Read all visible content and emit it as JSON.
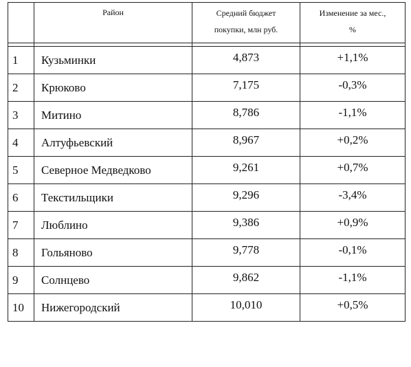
{
  "table": {
    "headers": {
      "number": "",
      "district": "Район",
      "budget_line1": "Средний бюджет",
      "budget_line2": "покупки, млн руб.",
      "change_line1": "Изменение за мес.,",
      "change_line2": "%"
    },
    "rows": [
      {
        "num": "1",
        "district": "Кузьминки",
        "budget": "4,873",
        "change": "+1,1%"
      },
      {
        "num": "2",
        "district": "Крюково",
        "budget": "7,175",
        "change": "-0,3%"
      },
      {
        "num": "3",
        "district": "Митино",
        "budget": "8,786",
        "change": "-1,1%"
      },
      {
        "num": "4",
        "district": "Алтуфьевский",
        "budget": "8,967",
        "change": "+0,2%"
      },
      {
        "num": "5",
        "district": "Северное Медведково",
        "budget": "9,261",
        "change": "+0,7%"
      },
      {
        "num": "6",
        "district": "Текстильщики",
        "budget": "9,296",
        "change": "-3,4%"
      },
      {
        "num": "7",
        "district": "Люблино",
        "budget": "9,386",
        "change": "+0,9%"
      },
      {
        "num": "8",
        "district": "Гольяново",
        "budget": "9,778",
        "change": "-0,1%"
      },
      {
        "num": "9",
        "district": "Солнцево",
        "budget": "9,862",
        "change": "-1,1%"
      },
      {
        "num": "10",
        "district": "Нижегородский",
        "budget": "10,010",
        "change": "+0,5%"
      }
    ]
  }
}
